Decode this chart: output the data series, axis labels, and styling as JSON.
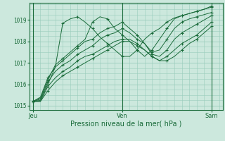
{
  "title": "",
  "xlabel": "Pression niveau de la mer( hPa )",
  "bg_color": "#cce8dd",
  "grid_color": "#99ccbb",
  "line_color": "#1a6b3a",
  "xtick_labels": [
    "Jeu",
    "Ven",
    "Sam"
  ],
  "xtick_positions": [
    0,
    12,
    24
  ],
  "ylim": [
    1014.8,
    1019.8
  ],
  "yticks": [
    1015,
    1016,
    1017,
    1018,
    1019
  ],
  "xlim": [
    -0.5,
    25.5
  ],
  "series": [
    [
      1015.2,
      1015.25,
      1016.0,
      1016.8,
      1018.85,
      1019.05,
      1019.15,
      1018.9,
      1018.6,
      1018.2,
      1017.9,
      1017.6,
      1017.3,
      1017.3,
      1017.6,
      1018.1,
      1018.4,
      1018.6,
      1018.9,
      1019.1,
      1019.2,
      1019.3,
      1019.4,
      1019.5,
      1019.6
    ],
    [
      1015.2,
      1015.35,
      1016.2,
      1016.9,
      1017.2,
      1017.5,
      1017.8,
      1018.1,
      1018.9,
      1019.15,
      1019.05,
      1018.6,
      1018.3,
      1018.0,
      1017.6,
      1017.3,
      1017.6,
      1018.1,
      1018.6,
      1019.05,
      1019.2,
      1019.3,
      1019.4,
      1019.5,
      1019.65
    ],
    [
      1015.2,
      1015.4,
      1016.3,
      1016.8,
      1017.1,
      1017.4,
      1017.7,
      1018.0,
      1018.1,
      1018.4,
      1018.6,
      1018.7,
      1018.9,
      1018.6,
      1018.3,
      1017.9,
      1017.5,
      1017.6,
      1018.1,
      1018.6,
      1018.9,
      1019.05,
      1019.15,
      1019.25,
      1019.35
    ],
    [
      1015.2,
      1015.3,
      1016.1,
      1016.6,
      1016.9,
      1017.1,
      1017.4,
      1017.6,
      1017.8,
      1018.1,
      1018.3,
      1018.4,
      1018.6,
      1018.4,
      1018.1,
      1017.9,
      1017.4,
      1017.3,
      1017.6,
      1018.1,
      1018.4,
      1018.6,
      1018.8,
      1019.0,
      1019.2
    ],
    [
      1015.2,
      1015.2,
      1015.9,
      1016.3,
      1016.6,
      1016.8,
      1017.1,
      1017.3,
      1017.4,
      1017.6,
      1017.8,
      1018.0,
      1018.1,
      1018.1,
      1017.9,
      1017.6,
      1017.3,
      1017.1,
      1017.3,
      1017.6,
      1017.9,
      1018.1,
      1018.3,
      1018.6,
      1018.9
    ],
    [
      1015.2,
      1015.2,
      1015.7,
      1016.1,
      1016.4,
      1016.6,
      1016.8,
      1017.0,
      1017.2,
      1017.4,
      1017.6,
      1017.8,
      1018.0,
      1018.0,
      1017.8,
      1017.6,
      1017.3,
      1017.1,
      1017.1,
      1017.3,
      1017.6,
      1017.9,
      1018.1,
      1018.4,
      1018.7
    ]
  ]
}
